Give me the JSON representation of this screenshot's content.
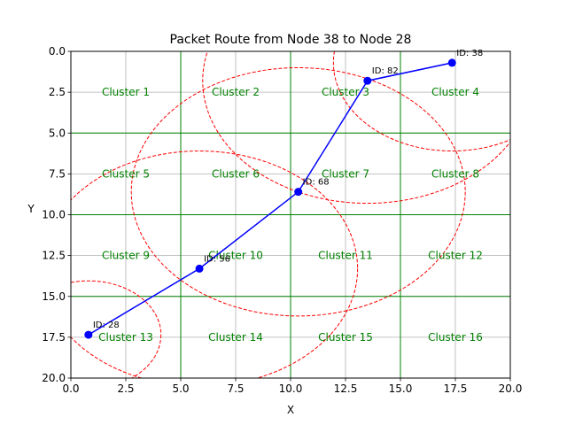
{
  "chart_data": {
    "type": "line",
    "title": "Packet Route from Node 38 to Node 28",
    "xlabel": "X",
    "ylabel": "Y",
    "xlim": [
      0,
      20
    ],
    "ylim": [
      0,
      20
    ],
    "y_inverted": true,
    "grid": true,
    "xticks": [
      "0.0",
      "2.5",
      "5.0",
      "7.5",
      "10.0",
      "12.5",
      "15.0",
      "17.5",
      "20.0"
    ],
    "yticks": [
      "0.0",
      "2.5",
      "5.0",
      "7.5",
      "10.0",
      "12.5",
      "15.0",
      "17.5",
      "20.0"
    ],
    "cluster_boundaries": {
      "x": [
        5,
        10,
        15
      ],
      "y": [
        5,
        10,
        15
      ],
      "color": "#008000"
    },
    "clusters": [
      {
        "label": "Cluster 1",
        "x": 2.5,
        "y": 2.5
      },
      {
        "label": "Cluster 2",
        "x": 7.5,
        "y": 2.5
      },
      {
        "label": "Cluster 3",
        "x": 12.5,
        "y": 2.5
      },
      {
        "label": "Cluster 4",
        "x": 17.5,
        "y": 2.5
      },
      {
        "label": "Cluster 5",
        "x": 2.5,
        "y": 7.5
      },
      {
        "label": "Cluster 6",
        "x": 7.5,
        "y": 7.5
      },
      {
        "label": "Cluster 7",
        "x": 12.5,
        "y": 7.5
      },
      {
        "label": "Cluster 8",
        "x": 17.5,
        "y": 7.5
      },
      {
        "label": "Cluster 9",
        "x": 2.5,
        "y": 12.5
      },
      {
        "label": "Cluster 10",
        "x": 7.5,
        "y": 12.5
      },
      {
        "label": "Cluster 11",
        "x": 12.5,
        "y": 12.5
      },
      {
        "label": "Cluster 12",
        "x": 17.5,
        "y": 12.5
      },
      {
        "label": "Cluster 13",
        "x": 2.5,
        "y": 17.5
      },
      {
        "label": "Cluster 14",
        "x": 7.5,
        "y": 17.5
      },
      {
        "label": "Cluster 15",
        "x": 12.5,
        "y": 17.5
      },
      {
        "label": "Cluster 16",
        "x": 17.5,
        "y": 17.5
      }
    ],
    "cluster_label_color": "#008000",
    "route": {
      "color": "#0000ff",
      "points": [
        {
          "id": "ID: 38",
          "x": 17.35,
          "y": 0.7
        },
        {
          "id": "ID: 82",
          "x": 13.5,
          "y": 1.8
        },
        {
          "id": "ID: 68",
          "x": 10.35,
          "y": 8.6
        },
        {
          "id": "ID: 56",
          "x": 5.85,
          "y": 13.3
        },
        {
          "id": "ID: 28",
          "x": 0.8,
          "y": 17.35
        }
      ]
    },
    "range_circles": {
      "color": "#ff0000",
      "style": "dashed",
      "items": [
        {
          "cx": 17.35,
          "cy": 0.7,
          "r": 5.4
        },
        {
          "cx": 13.5,
          "cy": 1.8,
          "r": 7.5
        },
        {
          "cx": 10.35,
          "cy": 8.6,
          "r": 7.6
        },
        {
          "cx": 5.85,
          "cy": 13.3,
          "r": 7.2
        },
        {
          "cx": 0.8,
          "cy": 17.35,
          "r": 3.3
        }
      ]
    }
  }
}
